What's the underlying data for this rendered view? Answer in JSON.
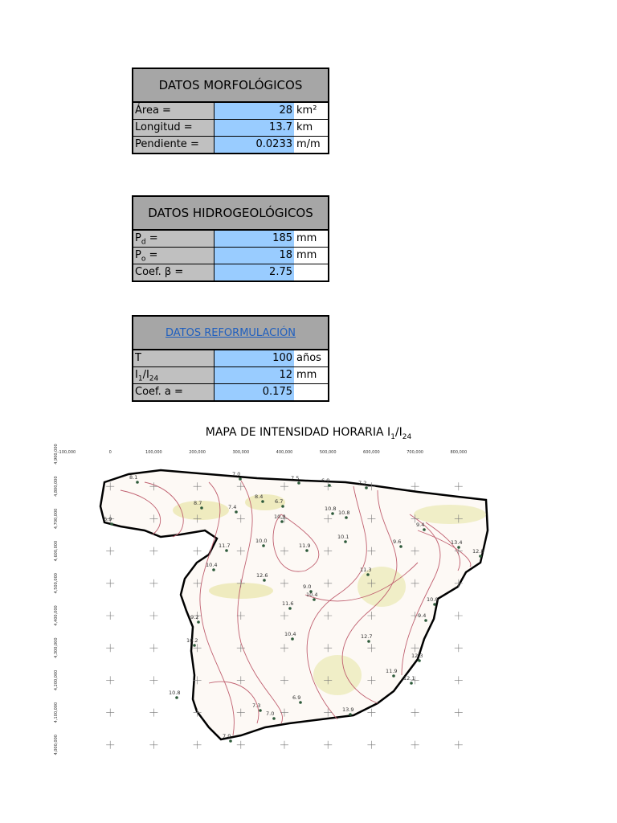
{
  "tables": [
    {
      "title": "DATOS MORFOLÓGICOS",
      "rows": [
        {
          "label": [
            "Área ="
          ],
          "value": 28,
          "unit": "km²"
        },
        {
          "label": [
            "Longitud ="
          ],
          "value": 13.7,
          "unit": "km"
        },
        {
          "label": [
            "Pendiente ="
          ],
          "value": 0.0233,
          "unit": "m/m"
        }
      ]
    },
    {
      "title": "DATOS HIDROGEOLÓGICOS",
      "rows": [
        {
          "label": [
            "P",
            "d",
            " ="
          ],
          "value": 185,
          "unit": "mm"
        },
        {
          "label": [
            "P",
            "o",
            " ="
          ],
          "value": 18,
          "unit": "mm"
        },
        {
          "label": [
            "Coef. β ="
          ],
          "value": 2.75
        }
      ]
    },
    {
      "title": "DATOS REFORMULACIÓN",
      "link": true,
      "rows": [
        {
          "label": [
            "T"
          ],
          "value": 100,
          "unit": "años"
        },
        {
          "label": [
            "I",
            "1",
            "/I",
            "24"
          ],
          "value": 12,
          "unit": "mm"
        },
        {
          "label": [
            "Coef. a ="
          ],
          "value": 0.175
        }
      ]
    }
  ],
  "map": {
    "title": [
      "MAPA DE INTENSIDAD HORARIA I",
      "1",
      "/I",
      "24"
    ],
    "x_labels": [
      "-100,000",
      "0",
      "100,000",
      "200,000",
      "300,000",
      "400,000",
      "500,000",
      "600,000",
      "700,000",
      "800,000"
    ],
    "y_labels": [
      "4,900,000",
      "4,800,000",
      "4,700,000",
      "4,600,000",
      "4,500,000",
      "4,400,000",
      "4,300,000",
      "4,200,000",
      "4,100,000",
      "4,000,000"
    ],
    "stations": [
      "8.1",
      "7.0",
      "7.5",
      "6.9",
      "7.2",
      "8.7",
      "7.4",
      "8.4",
      "6.7",
      "6.9",
      "10.8",
      "10.8",
      "10.0",
      "10.1",
      "9.4",
      "11.7",
      "10.0",
      "11.9",
      "13.4",
      "9.6",
      "12.8",
      "10.4",
      "11.3",
      "12.6",
      "9.0",
      "10.4",
      "11.6",
      "10.0",
      "9.4",
      "9.2",
      "10.4",
      "12.7",
      "10.2",
      "12.3",
      "11.9",
      "12.1",
      "10.8",
      "7.3",
      "7.0",
      "6.9",
      "13.9",
      "7.0"
    ]
  }
}
